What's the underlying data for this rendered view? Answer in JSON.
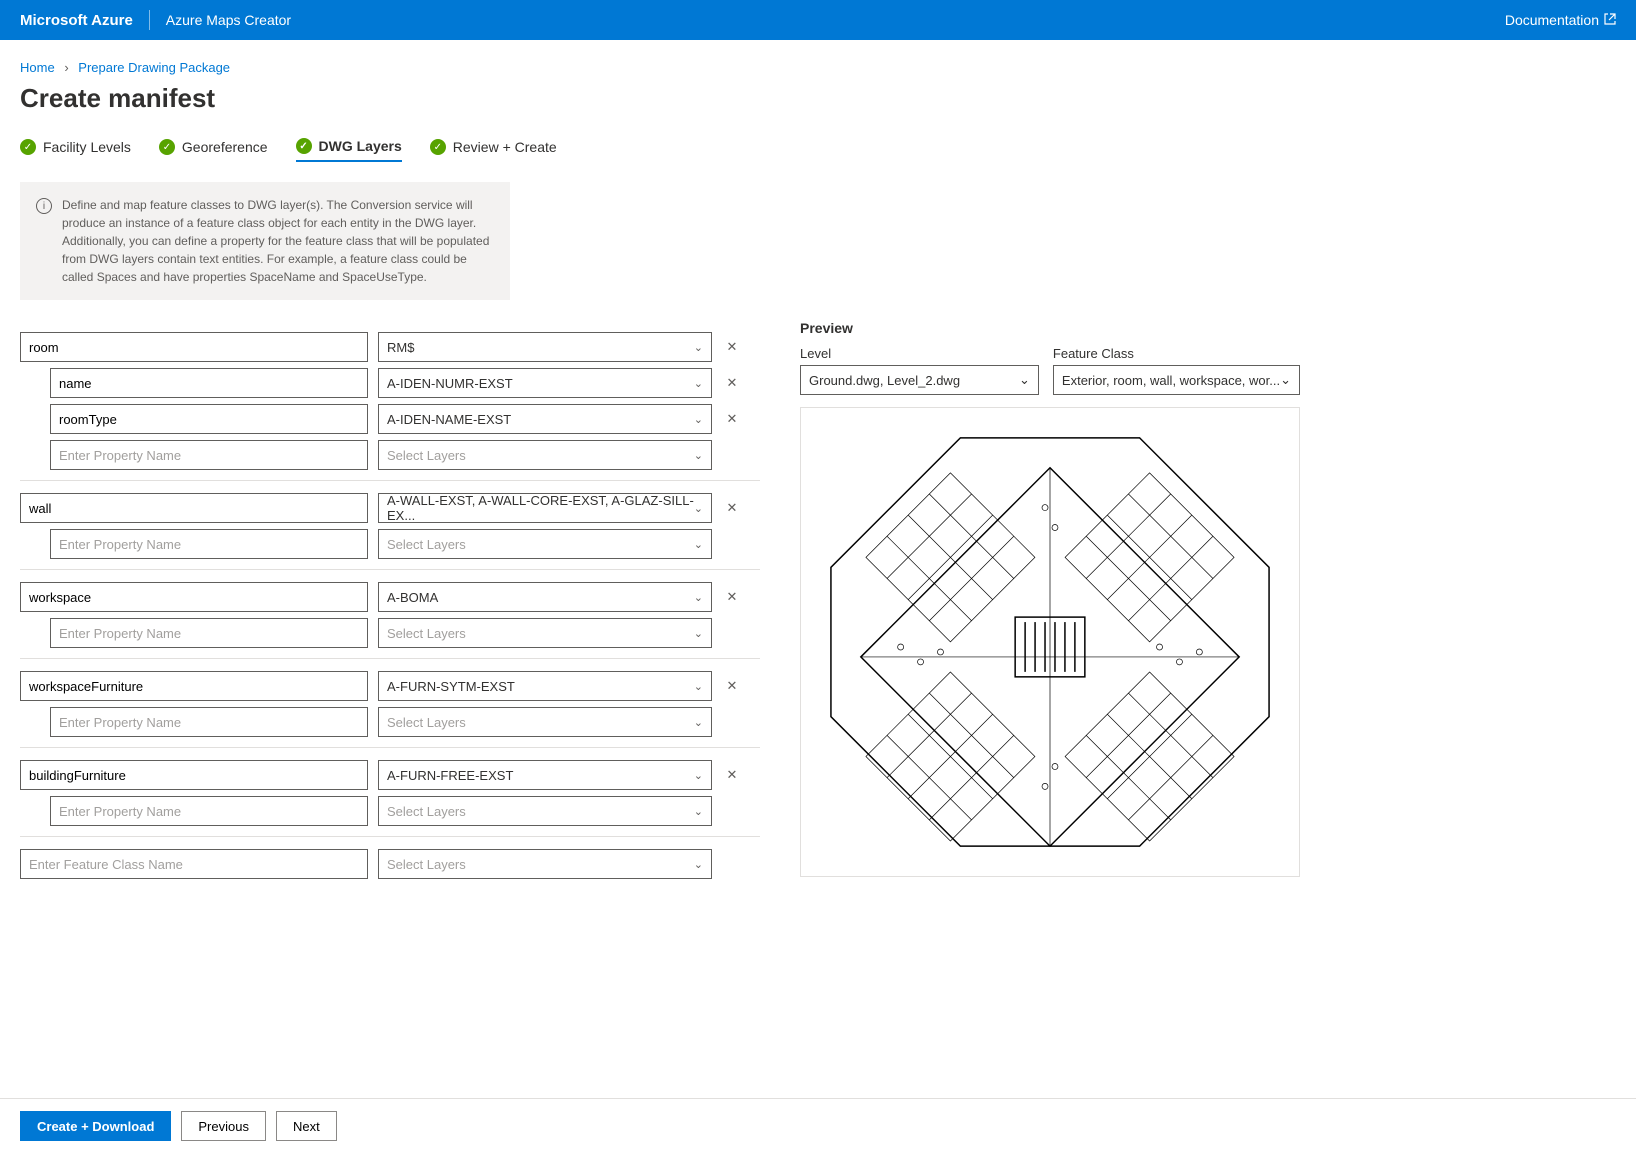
{
  "header": {
    "brand": "Microsoft Azure",
    "product": "Azure Maps Creator",
    "doc_link": "Documentation"
  },
  "breadcrumb": {
    "home": "Home",
    "current": "Prepare Drawing Package"
  },
  "page_title": "Create manifest",
  "tabs": [
    {
      "label": "Facility Levels",
      "completed": true,
      "active": false
    },
    {
      "label": "Georeference",
      "completed": true,
      "active": false
    },
    {
      "label": "DWG Layers",
      "completed": true,
      "active": true
    },
    {
      "label": "Review + Create",
      "completed": true,
      "active": false
    }
  ],
  "info_text": "Define and map feature classes to DWG layer(s). The Conversion service will produce an instance of a feature class object for each entity in the DWG layer. Additionally, you can define a property for the feature class that will be populated from DWG layers contain text entities. For example, a feature class could be called Spaces and have properties SpaceName and SpaceUseType.",
  "placeholders": {
    "feature_class": "Enter Feature Class Name",
    "property": "Enter Property Name",
    "layers": "Select Layers"
  },
  "feature_classes": [
    {
      "name": "room",
      "layers": "RM$",
      "properties": [
        {
          "name": "name",
          "layers": "A-IDEN-NUMR-EXST"
        },
        {
          "name": "roomType",
          "layers": "A-IDEN-NAME-EXST"
        }
      ]
    },
    {
      "name": "wall",
      "layers": "A-WALL-EXST, A-WALL-CORE-EXST, A-GLAZ-SILL-EX...",
      "properties": []
    },
    {
      "name": "workspace",
      "layers": "A-BOMA",
      "properties": []
    },
    {
      "name": "workspaceFurniture",
      "layers": "A-FURN-SYTM-EXST",
      "properties": []
    },
    {
      "name": "buildingFurniture",
      "layers": "A-FURN-FREE-EXST",
      "properties": []
    }
  ],
  "preview": {
    "title": "Preview",
    "level_label": "Level",
    "level_value": "Ground.dwg, Level_2.dwg",
    "fc_label": "Feature Class",
    "fc_value": "Exterior, room, wall, workspace, wor..."
  },
  "footer": {
    "primary": "Create + Download",
    "previous": "Previous",
    "next": "Next"
  },
  "colors": {
    "azure_blue": "#0078d4",
    "success_green": "#57a300",
    "border": "#605e5c",
    "info_bg": "#f3f2f1"
  }
}
